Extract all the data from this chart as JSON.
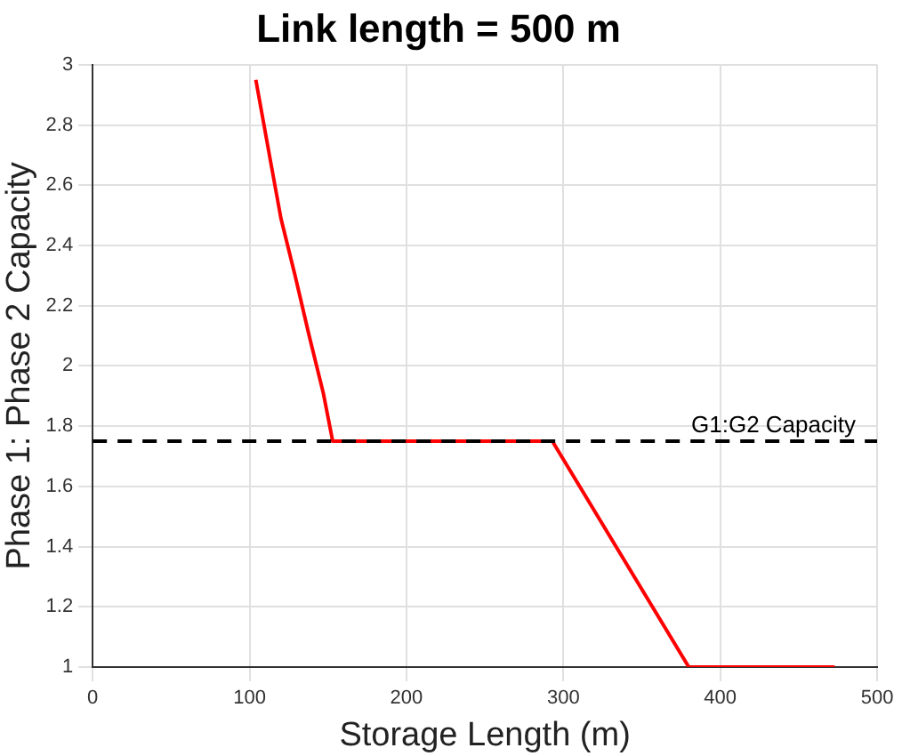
{
  "chart_data": {
    "type": "line",
    "title": "Link length = 500 m",
    "xlabel": "Storage Length (m)",
    "ylabel": "Phase 1: Phase 2 Capacity",
    "series": [
      {
        "color": "#ff0000",
        "x": [
          104,
          113,
          120,
          129,
          138,
          147,
          153,
          293,
          380,
          473
        ],
        "values": [
          2.95,
          2.69,
          2.49,
          2.3,
          2.1,
          1.91,
          1.75,
          1.75,
          1,
          1
        ]
      }
    ],
    "xlim": [
      0,
      500
    ],
    "xticks": [
      0,
      100,
      200,
      300,
      400,
      500
    ],
    "ylim": [
      1,
      3
    ],
    "yticks": [
      1,
      1.2,
      1.4,
      1.6,
      1.8,
      2,
      2.2,
      2.4,
      2.6,
      2.8,
      3
    ],
    "ref_lines": [
      {
        "axis": "y",
        "value": 1.75,
        "label": "G1:G2 Capacity",
        "color": "#000000",
        "line_style": "dashed"
      }
    ],
    "grid": true,
    "legend": false,
    "marker": "none",
    "line_style": "solid"
  }
}
